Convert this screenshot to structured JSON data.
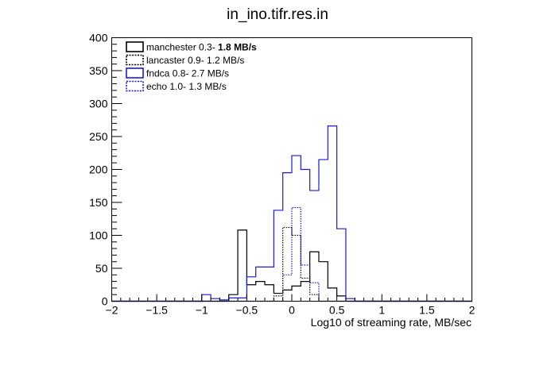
{
  "chart_data": {
    "type": "histogram",
    "title": "in_ino.tifr.res.in",
    "xlabel": "Log10  of streaming rate, MB/sec",
    "ylabel": "",
    "xlim": [
      -2,
      2
    ],
    "ylim": [
      0,
      400
    ],
    "x_ticks": [
      -2,
      -1.5,
      -1,
      -0.5,
      0,
      0.5,
      1,
      1.5,
      2
    ],
    "x_tick_labels": [
      "−2",
      "−1.5",
      "−1",
      "−0.5",
      "0",
      "0.5",
      "1",
      "1.5",
      "2"
    ],
    "y_ticks": [
      0,
      50,
      100,
      150,
      200,
      250,
      300,
      350,
      400
    ],
    "y_tick_labels": [
      "0",
      "50",
      "100",
      "150",
      "200",
      "250",
      "300",
      "350",
      "400"
    ],
    "grid": false,
    "legend_position": "top-left",
    "bin_edges": [
      -2.0,
      -1.9,
      -1.8,
      -1.7,
      -1.6,
      -1.5,
      -1.4,
      -1.3,
      -1.2,
      -1.1,
      -1.0,
      -0.9,
      -0.8,
      -0.7,
      -0.6,
      -0.5,
      -0.4,
      -0.3,
      -0.2,
      -0.1,
      0.0,
      0.1,
      0.2,
      0.3,
      0.4,
      0.5,
      0.6,
      0.7,
      0.8,
      0.9,
      1.0,
      1.1,
      1.2,
      1.3,
      1.4,
      1.5,
      1.6,
      1.7,
      1.8,
      1.9,
      2.0
    ],
    "series": [
      {
        "name": "manchester",
        "range_text": "0.3- ",
        "rate_text": "1.8 MB/s",
        "color": "#000000",
        "style": "solid",
        "bins": [
          {
            "lo": -0.7,
            "hi": -0.6,
            "count": 10
          },
          {
            "lo": -0.6,
            "hi": -0.5,
            "count": 108
          },
          {
            "lo": -0.5,
            "hi": -0.4,
            "count": 25
          },
          {
            "lo": -0.4,
            "hi": -0.3,
            "count": 30
          },
          {
            "lo": -0.3,
            "hi": -0.2,
            "count": 25
          },
          {
            "lo": -0.2,
            "hi": -0.1,
            "count": 12
          },
          {
            "lo": -0.1,
            "hi": 0.0,
            "count": 17
          },
          {
            "lo": 0.0,
            "hi": 0.1,
            "count": 23
          },
          {
            "lo": 0.1,
            "hi": 0.2,
            "count": 30
          },
          {
            "lo": 0.2,
            "hi": 0.3,
            "count": 75
          },
          {
            "lo": 0.3,
            "hi": 0.4,
            "count": 60
          },
          {
            "lo": 0.4,
            "hi": 0.5,
            "count": 20
          },
          {
            "lo": 0.5,
            "hi": 0.6,
            "count": 8
          }
        ]
      },
      {
        "name": "lancaster",
        "range_text": "0.9- ",
        "rate_text": "1.2 MB/s",
        "color": "#000000",
        "style": "dotted",
        "bins": [
          {
            "lo": -0.2,
            "hi": -0.1,
            "count": 8
          },
          {
            "lo": -0.1,
            "hi": 0.0,
            "count": 112
          },
          {
            "lo": 0.0,
            "hi": 0.1,
            "count": 100
          },
          {
            "lo": 0.1,
            "hi": 0.2,
            "count": 35
          },
          {
            "lo": 0.2,
            "hi": 0.3,
            "count": 10
          }
        ]
      },
      {
        "name": "fndca",
        "range_text": "0.8- ",
        "rate_text": "2.7 MB/s",
        "color": "#1a1adc",
        "style": "solid",
        "bins": [
          {
            "lo": -1.0,
            "hi": -0.9,
            "count": 10
          },
          {
            "lo": -0.9,
            "hi": -0.8,
            "count": 4
          },
          {
            "lo": -0.8,
            "hi": -0.7,
            "count": 2
          },
          {
            "lo": -0.7,
            "hi": -0.6,
            "count": 5
          },
          {
            "lo": -0.6,
            "hi": -0.5,
            "count": 5
          },
          {
            "lo": -0.5,
            "hi": -0.4,
            "count": 37
          },
          {
            "lo": -0.4,
            "hi": -0.3,
            "count": 52
          },
          {
            "lo": -0.3,
            "hi": -0.2,
            "count": 52
          },
          {
            "lo": -0.2,
            "hi": -0.1,
            "count": 138
          },
          {
            "lo": -0.1,
            "hi": 0.0,
            "count": 195
          },
          {
            "lo": 0.0,
            "hi": 0.1,
            "count": 221
          },
          {
            "lo": 0.1,
            "hi": 0.2,
            "count": 200
          },
          {
            "lo": 0.2,
            "hi": 0.3,
            "count": 168
          },
          {
            "lo": 0.3,
            "hi": 0.4,
            "count": 215
          },
          {
            "lo": 0.4,
            "hi": 0.5,
            "count": 266
          },
          {
            "lo": 0.5,
            "hi": 0.6,
            "count": 110
          },
          {
            "lo": 0.6,
            "hi": 0.7,
            "count": 4
          }
        ]
      },
      {
        "name": "echo",
        "range_text": "1.0- ",
        "rate_text": "1.3 MB/s",
        "color": "#1a1adc",
        "style": "dotted",
        "bins": [
          {
            "lo": -0.1,
            "hi": 0.0,
            "count": 40
          },
          {
            "lo": 0.0,
            "hi": 0.1,
            "count": 142
          },
          {
            "lo": 0.1,
            "hi": 0.2,
            "count": 55
          },
          {
            "lo": 0.2,
            "hi": 0.3,
            "count": 28
          }
        ]
      }
    ]
  }
}
